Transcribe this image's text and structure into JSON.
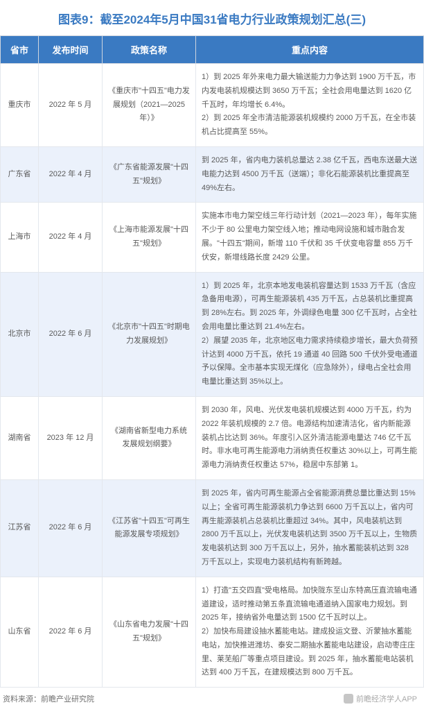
{
  "title": "图表9：截至2024年5月中国31省电力行业政策规划汇总(三)",
  "columns": {
    "province": "省市",
    "pubdate": "发布时间",
    "policyname": "政策名称",
    "content": "重点内容"
  },
  "rows": [
    {
      "province": "重庆市",
      "pubdate": "2022 年 5 月",
      "policyname": "《重庆市\"十四五\"电力发展规划（2021—2025 年）》",
      "content": "1）到 2025 年外来电力最大输送能力力争达到 1900 万千瓦，市内发电装机规模达到 3650 万千瓦；全社会用电量达到 1620 亿千瓦时，年均增长 6.4%。\n2）到 2025 年全市清洁能源装机规模约 2000 万千瓦，在全市装机占比提高至 55%。"
    },
    {
      "province": "广东省",
      "pubdate": "2022 年 4 月",
      "policyname": "《广东省能源发展\"十四五\"规划》",
      "content": "到 2025 年，省内电力装机总量达 2.38 亿千瓦，西电东送最大送电能力达到 4500 万千瓦（送端）；非化石能源装机比重提高至 49%左右。"
    },
    {
      "province": "上海市",
      "pubdate": "2022 年 4 月",
      "policyname": "《上海市能源发展\"十四五\"规划》",
      "content": "实施本市电力架空线三年行动计划（2021—2023 年），每年实施不少于 80 公里电力架空线入地；推动电网设施和城市融合发展。\"十四五\"期间，新增 110 千伏和 35 千伏变电容量 855 万千伏安，新增线路长度 2429 公里。"
    },
    {
      "province": "北京市",
      "pubdate": "2022 年 6 月",
      "policyname": "《北京市\"十四五\"时期电力发展规划》",
      "content": "1）到 2025 年，北京本地发电装机容量达到 1533 万千瓦（含应急备用电源），可再生能源装机 435 万千瓦，占总装机比重提高到 28%左右。到 2025 年，外调绿色电量 300 亿千瓦时，占全社会用电量比重达到 21.4%左右。\n2）展望 2035 年，北京地区电力需求持续稳步增长，最大负荷预计达到 4000 万千瓦，依托 19 通道 40 回路 500 千伏外受电通道予以保障。全市基本实现无煤化（应急除外），绿电占全社会用电量比重达到 35%以上。"
    },
    {
      "province": "湖南省",
      "pubdate": "2023 年 12 月",
      "policyname": "《湖南省新型电力系统发展规划纲要》",
      "content": "到 2030 年，风电、光伏发电装机规模达到 4000 万千瓦，约为 2022 年装机规模的 2.7 倍。电源结构加速清洁化，省内新能源装机占比达到 36%。年度引入区外清洁能源电量达 746 亿千瓦时。非水电可再生能源电力消纳责任权重达 30%以上，可再生能源电力消纳责任权重达 57%，稳居中东部第 1。"
    },
    {
      "province": "江苏省",
      "pubdate": "2022 年 6 月",
      "policyname": "《江苏省\"十四五\"可再生能源发展专项规划》",
      "content": "到 2025 年，省内可再生能源占全省能源消费总量比重达到 15%以上；全省可再生能源装机力争达到 6600 万千瓦以上，省内可再生能源装机占总装机比重超过 34%。其中，风电装机达到 2800 万千瓦以上，光伏发电装机达到 3500 万千瓦以上，生物质发电装机达到 300 万千瓦以上，另外，抽水蓄能装机达到 328 万千瓦以上，实现电力装机结构有新跨越。"
    },
    {
      "province": "山东省",
      "pubdate": "2022 年 6 月",
      "policyname": "《山东省电力发展\"十四五\"规划》",
      "content": "1）打造\"五交四直\"受电格局。加快陇东至山东特高压直流输电通道建设，适时推动第五条直流输电通道纳入国家电力规划。到 2025 年，接纳省外电量达到 1500 亿千瓦时以上。\n2）加快布局建设抽水蓄能电站。建成投运文登、沂蒙抽水蓄能电站，加快推进潍坊、泰安二期抽水蓄能电站建设，启动枣庄庄里、莱芜船厂等重点项目建设。到 2025 年，抽水蓄能电站装机达到 400 万千瓦，在建规模达到 800 万千瓦。"
    }
  ],
  "footer": {
    "source_label": "资料来源：前瞻产业研究院",
    "watermark": "前瞻经济学人APP"
  },
  "colors": {
    "header_bg": "#3a7ac2",
    "header_text": "#ffffff",
    "title_color": "#3a7ac2",
    "row_odd_bg": "#ffffff",
    "row_even_bg": "#ebf1fb",
    "border_color": "#e3e7ed",
    "text_color": "#595959"
  }
}
